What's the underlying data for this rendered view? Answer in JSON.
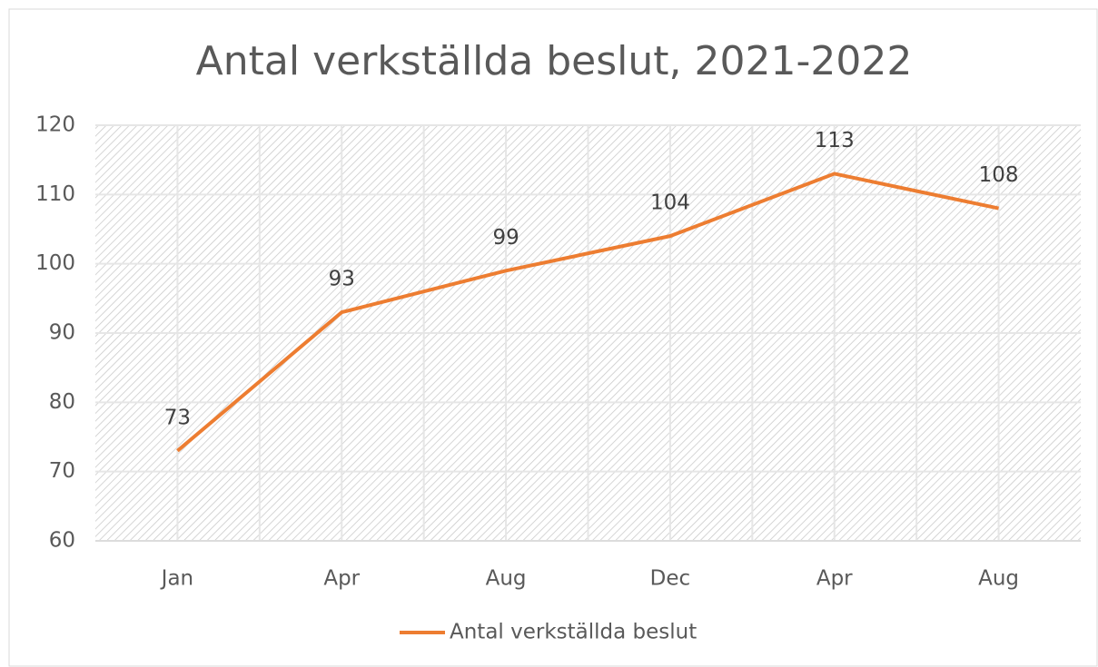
{
  "chart_data": {
    "type": "line",
    "title": "Antal verkställda beslut, 2021-2022",
    "categories": [
      "Jan",
      "Apr",
      "Aug",
      "Dec",
      "Apr",
      "Aug"
    ],
    "series": [
      {
        "name": "Antal verkställda beslut",
        "color": "#ED7D31",
        "values": [
          73,
          93,
          99,
          104,
          113,
          108
        ]
      }
    ],
    "ylim": [
      60,
      120
    ],
    "yticks": [
      60,
      70,
      80,
      90,
      100,
      110,
      120
    ],
    "grid": true,
    "legend": "bottom",
    "data_labels": true
  }
}
